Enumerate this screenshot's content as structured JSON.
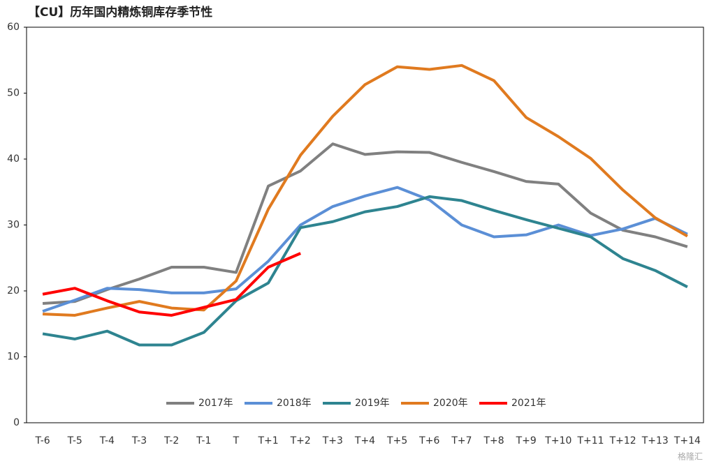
{
  "chart_data": {
    "type": "line",
    "title": "【CU】历年国内精炼铜库存季节性",
    "categories": [
      "T-6",
      "T-5",
      "T-4",
      "T-3",
      "T-2",
      "T-1",
      "T",
      "T+1",
      "T+2",
      "T+3",
      "T+4",
      "T+5",
      "T+6",
      "T+7",
      "T+8",
      "T+9",
      "T+10",
      "T+11",
      "T+12",
      "T+13",
      "T+14"
    ],
    "series": [
      {
        "name": "2017年",
        "color": "#808080",
        "values": [
          18.1,
          18.4,
          20.2,
          21.8,
          23.6,
          23.6,
          22.8,
          35.9,
          38.2,
          42.3,
          40.7,
          41.1,
          41.0,
          39.5,
          38.1,
          36.6,
          36.2,
          31.8,
          29.2,
          28.2,
          26.7
        ]
      },
      {
        "name": "2018年",
        "color": "#5b8fd6",
        "values": [
          16.9,
          18.6,
          20.4,
          20.2,
          19.7,
          19.7,
          20.3,
          24.5,
          30.0,
          32.8,
          34.4,
          35.7,
          33.8,
          30.0,
          28.2,
          28.5,
          30.0,
          28.4,
          29.4,
          31.0,
          28.6
        ]
      },
      {
        "name": "2019年",
        "color": "#2e8490",
        "values": [
          13.5,
          12.7,
          13.9,
          11.8,
          11.8,
          13.7,
          18.5,
          21.2,
          29.6,
          30.5,
          32.0,
          32.8,
          34.3,
          33.7,
          32.2,
          30.8,
          29.5,
          28.2,
          24.9,
          23.1,
          20.6
        ]
      },
      {
        "name": "2020年",
        "color": "#e07a1f",
        "values": [
          16.5,
          16.3,
          17.4,
          18.4,
          17.4,
          17.1,
          21.5,
          32.4,
          40.6,
          46.5,
          51.3,
          54.0,
          53.6,
          54.2,
          51.9,
          46.3,
          43.4,
          40.1,
          35.3,
          31.1,
          28.3
        ]
      },
      {
        "name": "2021年",
        "color": "#ff0000",
        "values": [
          19.5,
          20.4,
          18.5,
          16.8,
          16.3,
          17.5,
          18.7,
          23.6,
          25.7,
          null,
          null,
          null,
          null,
          null,
          null,
          null,
          null,
          null,
          null,
          null,
          null
        ]
      }
    ],
    "ylim": [
      0,
      60
    ],
    "yticks": [
      0,
      10,
      20,
      30,
      40,
      50,
      60
    ],
    "legend": "bottom",
    "watermark": "格隆汇"
  }
}
